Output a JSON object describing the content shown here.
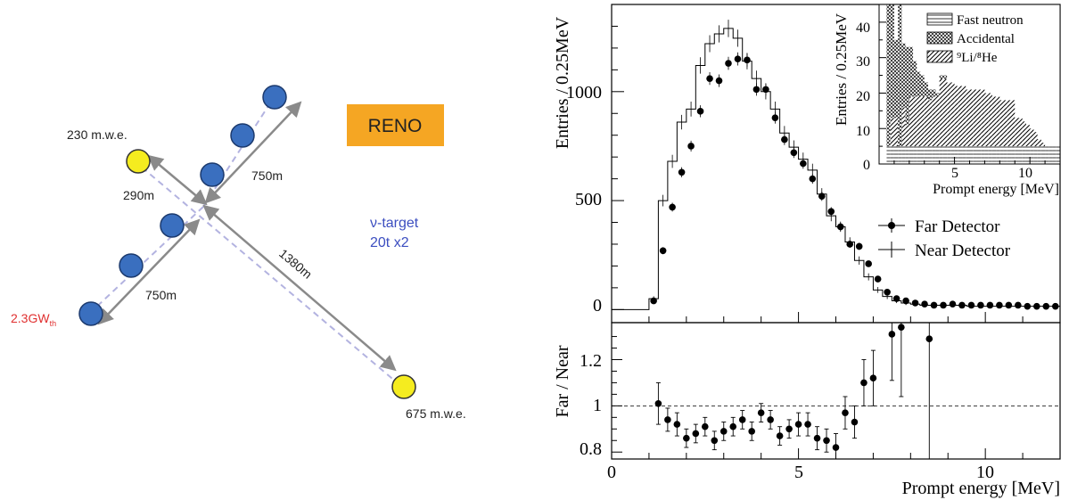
{
  "layout_diagram": {
    "badge_label": "RENO",
    "badge_color": "#f5a623",
    "detector_color": "#3a6fbf",
    "reactor_color": "#f5ec1f",
    "labels": {
      "overburden_near": "230 m.w.e.",
      "overburden_far": "675 m.w.e.",
      "distance_290": "290m",
      "distance_750_upper": "750m",
      "distance_750_lower": "750m",
      "distance_1380": "1380m",
      "power_main": "2.3GW",
      "power_sub": "th",
      "target_line1": "ν-target",
      "target_line2": "20t x2"
    }
  },
  "chart_data": [
    {
      "type": "line",
      "xlabel": "Prompt energy [MeV]",
      "ylabel": "Entries / 0.25MeV",
      "xlim": [
        0,
        12
      ],
      "ylim": [
        -60,
        1400
      ],
      "yticks": [
        "0",
        "500",
        "1000"
      ],
      "xticks": [
        "0",
        "5",
        "10"
      ],
      "legend": {
        "position": "right",
        "entries": [
          "Far Detector",
          "Near Detector"
        ]
      },
      "x": [
        1.125,
        1.375,
        1.625,
        1.875,
        2.125,
        2.375,
        2.625,
        2.875,
        3.125,
        3.375,
        3.625,
        3.875,
        4.125,
        4.375,
        4.625,
        4.875,
        5.125,
        5.375,
        5.625,
        5.875,
        6.125,
        6.375,
        6.625,
        6.875,
        7.125,
        7.375,
        7.625,
        7.875,
        8.125,
        8.375,
        8.625,
        8.875,
        9.125,
        9.375,
        9.625,
        9.875,
        10.125,
        10.375,
        10.625,
        10.875,
        11.125,
        11.375,
        11.625,
        11.875
      ],
      "series": [
        {
          "name": "Far Detector",
          "values": [
            40,
            270,
            470,
            630,
            750,
            910,
            1060,
            1050,
            1130,
            1150,
            1145,
            1010,
            1010,
            880,
            780,
            720,
            670,
            600,
            520,
            450,
            380,
            300,
            290,
            210,
            140,
            80,
            50,
            40,
            30,
            25,
            20,
            20,
            25,
            20,
            20,
            20,
            20,
            20,
            20,
            20,
            15,
            15,
            15,
            15
          ]
        },
        {
          "name": "Near Detector",
          "values": [
            50,
            500,
            680,
            860,
            920,
            1120,
            1220,
            1265,
            1290,
            1245,
            1140,
            1060,
            1000,
            920,
            810,
            745,
            690,
            640,
            530,
            430,
            380,
            310,
            225,
            150,
            90,
            60,
            40,
            30,
            25,
            20,
            20,
            20,
            20,
            20,
            15,
            15,
            15,
            15,
            15,
            15,
            15,
            15,
            15,
            15
          ]
        }
      ]
    },
    {
      "type": "bar",
      "xlabel": "Prompt energy [MeV]",
      "ylabel": "Entries / 0.25MeV",
      "xlim": [
        0,
        12
      ],
      "ylim": [
        0,
        45
      ],
      "yticks": [
        "0",
        "10",
        "20",
        "30",
        "40"
      ],
      "xticks": [
        "5",
        "10"
      ],
      "legend": {
        "position": "top-right",
        "entries": [
          "Fast neutron",
          "Accidental",
          "⁹Li/⁸He"
        ]
      },
      "x": [
        0.625,
        0.875,
        1.125,
        1.375,
        1.625,
        1.875,
        2.125,
        2.375,
        2.625,
        2.875,
        3.125,
        3.375,
        3.625,
        3.875,
        4.125,
        4.375,
        4.625,
        4.875,
        5.125,
        5.375,
        5.625,
        5.875,
        6.125,
        6.375,
        6.625,
        6.875,
        7.125,
        7.375,
        7.625,
        7.875,
        8.125,
        8.375,
        8.625,
        8.875,
        9.125,
        9.375,
        9.625,
        9.875,
        10.125,
        10.375,
        10.625,
        10.875,
        11.125,
        11.375,
        11.625,
        11.875
      ],
      "series": [
        {
          "name": "Fast neutron",
          "values": [
            5,
            5,
            5,
            5,
            5,
            5,
            5,
            5,
            5,
            5,
            5,
            5,
            5,
            5,
            5,
            5,
            5,
            5,
            5,
            5,
            5,
            5,
            5,
            5,
            5,
            5,
            5,
            5,
            5,
            5,
            5,
            5,
            5,
            5,
            5,
            5,
            5,
            5,
            5,
            5,
            5,
            5,
            5,
            5,
            5,
            5
          ]
        },
        {
          "name": "Accidental",
          "values": [
            40,
            35,
            22,
            40,
            18,
            22,
            14,
            10,
            7,
            6,
            4,
            3,
            2,
            1,
            1,
            1,
            0,
            0,
            0,
            0,
            0,
            0,
            0,
            0,
            0,
            0,
            0,
            0,
            0,
            0,
            0,
            0,
            0,
            0,
            0,
            0,
            0,
            0,
            0,
            0,
            0,
            0,
            0,
            0,
            0,
            0
          ]
        },
        {
          "name": "⁹Li/⁸He",
          "values": [
            0,
            8,
            8,
            0,
            11,
            6,
            14,
            14,
            14,
            14,
            14,
            13,
            14,
            14,
            19,
            19,
            18,
            18,
            17,
            17,
            17,
            16,
            16,
            16,
            16,
            16,
            15,
            15,
            14,
            14,
            13,
            13,
            13,
            13,
            8,
            8,
            7,
            6,
            5,
            4,
            2,
            1,
            0,
            0,
            0,
            0
          ]
        }
      ]
    },
    {
      "type": "scatter",
      "xlabel": "Prompt energy [MeV]",
      "ylabel": "Far / Near",
      "xlim": [
        0,
        12
      ],
      "ylim": [
        0.77,
        1.36
      ],
      "yticks": [
        "0.8",
        "1",
        "1.2"
      ],
      "xticks": [
        "0",
        "5",
        "10"
      ],
      "reference_line": 1,
      "x": [
        1.25,
        1.5,
        1.75,
        2.0,
        2.25,
        2.5,
        2.75,
        3.0,
        3.25,
        3.5,
        3.75,
        4.0,
        4.25,
        4.5,
        4.75,
        5.0,
        5.25,
        5.5,
        5.75,
        6.0,
        6.25,
        6.5,
        6.75,
        7.0,
        7.5,
        7.75,
        8.5
      ],
      "series": [
        {
          "name": "",
          "values": [
            1.01,
            0.94,
            0.92,
            0.86,
            0.88,
            0.91,
            0.85,
            0.89,
            0.91,
            0.94,
            0.89,
            0.97,
            0.94,
            0.87,
            0.9,
            0.92,
            0.92,
            0.86,
            0.85,
            0.82,
            0.97,
            0.93,
            1.1,
            1.12,
            1.31,
            1.34,
            1.29
          ],
          "errors": [
            0.09,
            0.05,
            0.05,
            0.04,
            0.04,
            0.04,
            0.04,
            0.04,
            0.04,
            0.04,
            0.04,
            0.04,
            0.04,
            0.04,
            0.04,
            0.05,
            0.05,
            0.05,
            0.05,
            0.06,
            0.07,
            0.07,
            0.1,
            0.12,
            0.2,
            0.3,
            0.6
          ]
        }
      ]
    }
  ]
}
